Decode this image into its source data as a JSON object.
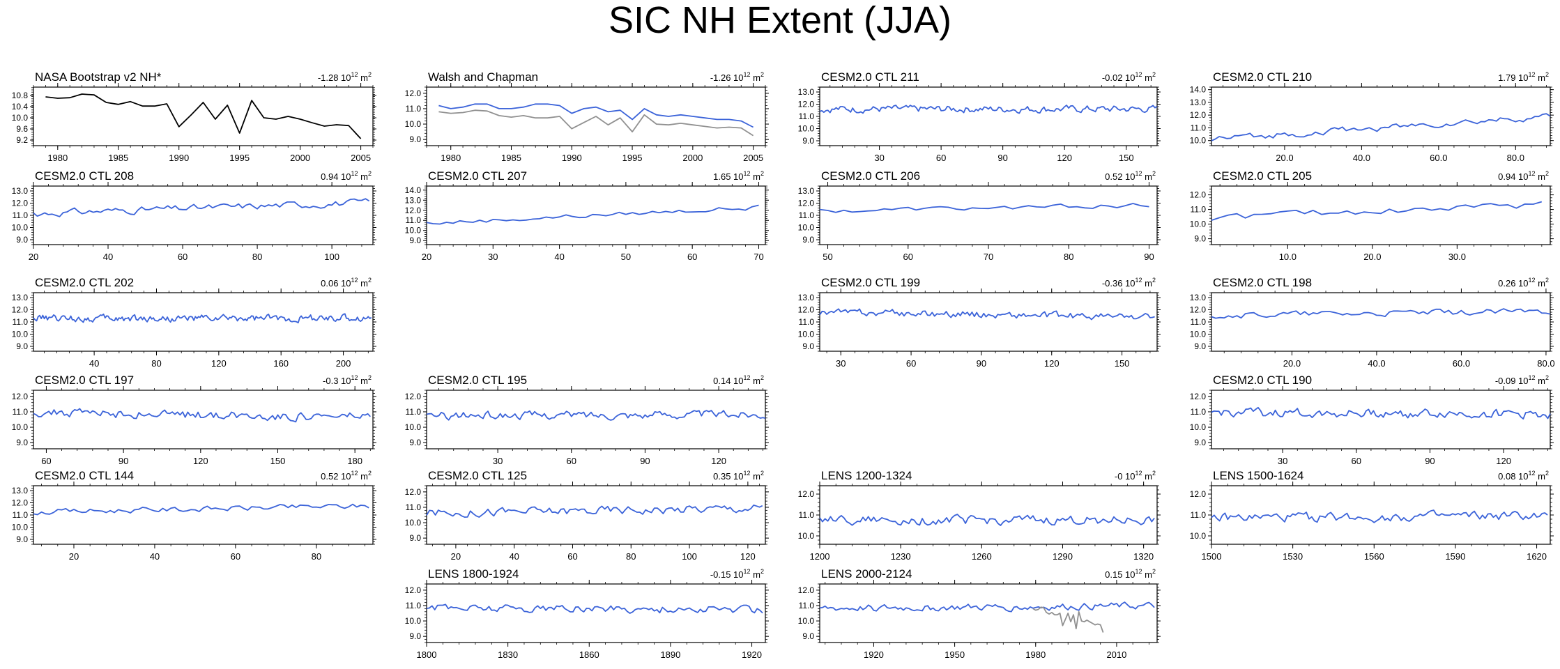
{
  "title": "SIC NH Extent (JJA)",
  "colors": {
    "model": "#3b63d9",
    "obs": "#000000",
    "obs_gray": "#909090"
  },
  "chart_data": [
    {
      "type": "line",
      "title": "NASA Bootstrap v2 NH*",
      "trend": "-1.28",
      "unit": "10",
      "exp": "12",
      "unit_tail": " m",
      "unit_exp": "2",
      "xlim": [
        1978,
        2006
      ],
      "xticks": [
        1980,
        1985,
        1990,
        1995,
        2000,
        2005
      ],
      "ylim": [
        9.0,
        11.1
      ],
      "yticks": [
        "9.2",
        "9.6",
        "10.0",
        "10.4",
        "10.8"
      ],
      "series": [
        {
          "color": "obs",
          "x": [
            1979,
            1980,
            1981,
            1982,
            1983,
            1984,
            1985,
            1986,
            1987,
            1988,
            1989,
            1990,
            1991,
            1992,
            1993,
            1994,
            1995,
            1996,
            1997,
            1998,
            1999,
            2000,
            2001,
            2002,
            2003,
            2004,
            2005
          ],
          "values": [
            10.75,
            10.7,
            10.72,
            10.85,
            10.82,
            10.55,
            10.48,
            10.58,
            10.42,
            10.42,
            10.5,
            9.68,
            10.1,
            10.55,
            9.95,
            10.45,
            9.45,
            10.62,
            10.0,
            9.95,
            10.05,
            9.95,
            9.82,
            9.7,
            9.75,
            9.72,
            9.25
          ]
        }
      ]
    },
    {
      "type": "line",
      "title": "Walsh and Chapman",
      "trend": "-1.26",
      "unit": "10",
      "exp": "12",
      "unit_tail": " m",
      "unit_exp": "2",
      "xlim": [
        1978,
        2006
      ],
      "xticks": [
        1980,
        1985,
        1990,
        1995,
        2000,
        2005
      ],
      "ylim": [
        8.6,
        12.4
      ],
      "yticks": [
        "9.0",
        "10.0",
        "11.0",
        "12.0"
      ],
      "series": [
        {
          "color": "model",
          "x": [
            1979,
            1980,
            1981,
            1982,
            1983,
            1984,
            1985,
            1986,
            1987,
            1988,
            1989,
            1990,
            1991,
            1992,
            1993,
            1994,
            1995,
            1996,
            1997,
            1998,
            1999,
            2000,
            2001,
            2002,
            2003,
            2004,
            2005
          ],
          "values": [
            11.2,
            11.0,
            11.1,
            11.3,
            11.3,
            11.0,
            11.0,
            11.1,
            11.3,
            11.3,
            11.2,
            10.7,
            11.0,
            11.1,
            10.8,
            10.9,
            10.3,
            11.0,
            10.6,
            10.5,
            10.6,
            10.5,
            10.4,
            10.3,
            10.3,
            10.2,
            9.8
          ]
        },
        {
          "color": "obs_gray",
          "x": [
            1979,
            1980,
            1981,
            1982,
            1983,
            1984,
            1985,
            1986,
            1987,
            1988,
            1989,
            1990,
            1991,
            1992,
            1993,
            1994,
            1995,
            1996,
            1997,
            1998,
            1999,
            2000,
            2001,
            2002,
            2003,
            2004,
            2005
          ],
          "values": [
            10.8,
            10.7,
            10.75,
            10.9,
            10.85,
            10.55,
            10.45,
            10.55,
            10.4,
            10.4,
            10.5,
            9.7,
            10.1,
            10.5,
            9.95,
            10.4,
            9.5,
            10.6,
            10.0,
            9.95,
            10.05,
            9.95,
            9.85,
            9.75,
            9.8,
            9.75,
            9.25
          ]
        }
      ]
    },
    {
      "type": "line",
      "title": "CESM2.0 CTL 211",
      "trend": "-0.02",
      "unit": "10",
      "exp": "12",
      "unit_tail": " m",
      "unit_exp": "2",
      "xlim": [
        1,
        165
      ],
      "xticks": [
        30,
        60,
        90,
        120,
        150
      ],
      "ylim": [
        8.6,
        13.4
      ],
      "yticks": [
        "9.0",
        "10.0",
        "11.0",
        "12.0",
        "13.0"
      ],
      "series": [
        {
          "color": "model",
          "gen": {
            "n": 165,
            "mean": 11.6,
            "amp": 0.45,
            "seed": 211
          }
        }
      ]
    },
    {
      "type": "line",
      "title": "CESM2.0 CTL 210",
      "trend": "1.79",
      "unit": "10",
      "exp": "12",
      "unit_tail": " m",
      "unit_exp": "2",
      "xlim": [
        1,
        89
      ],
      "xticks": [
        "20.0",
        "40.0",
        "60.0",
        "80.0"
      ],
      "xtickvals": [
        20,
        40,
        60,
        80
      ],
      "ylim": [
        9.6,
        14.2
      ],
      "yticks": [
        "10.0",
        "11.0",
        "12.0",
        "13.0",
        "14.0"
      ],
      "series": [
        {
          "color": "model",
          "gen": {
            "n": 89,
            "mean": 11.0,
            "amp": 0.4,
            "trend": 1.8,
            "seed": 210
          }
        }
      ]
    },
    {
      "type": "line",
      "title": "CESM2.0 CTL 208",
      "trend": "0.94",
      "unit": "10",
      "exp": "12",
      "unit_tail": " m",
      "unit_exp": "2",
      "xlim": [
        20,
        111
      ],
      "xticks": [
        20,
        40,
        60,
        80,
        100
      ],
      "ylim": [
        8.6,
        13.4
      ],
      "yticks": [
        "9.0",
        "10.0",
        "11.0",
        "12.0",
        "13.0"
      ],
      "series": [
        {
          "color": "model",
          "gen": {
            "n": 91,
            "x0": 20,
            "mean": 11.6,
            "amp": 0.45,
            "trend": 0.9,
            "seed": 208
          }
        }
      ]
    },
    {
      "type": "line",
      "title": "CESM2.0 CTL 207",
      "trend": "1.65",
      "unit": "10",
      "exp": "12",
      "unit_tail": " m",
      "unit_exp": "2",
      "xlim": [
        20,
        71
      ],
      "xticks": [
        20,
        30,
        40,
        50,
        60,
        70
      ],
      "ylim": [
        8.6,
        14.4
      ],
      "yticks": [
        "9.0",
        "10.0",
        "11.0",
        "12.0",
        "13.0",
        "14.0"
      ],
      "series": [
        {
          "color": "model",
          "gen": {
            "n": 51,
            "x0": 20,
            "mean": 11.5,
            "amp": 0.35,
            "trend": 1.6,
            "seed": 207
          }
        }
      ]
    },
    {
      "type": "line",
      "title": "CESM2.0 CTL 206",
      "trend": "0.52",
      "unit": "10",
      "exp": "12",
      "unit_tail": " m",
      "unit_exp": "2",
      "xlim": [
        49,
        91
      ],
      "xticks": [
        50,
        60,
        70,
        80,
        90
      ],
      "ylim": [
        8.6,
        13.4
      ],
      "yticks": [
        "9.0",
        "10.0",
        "11.0",
        "12.0",
        "13.0"
      ],
      "series": [
        {
          "color": "model",
          "gen": {
            "n": 42,
            "x0": 49,
            "mean": 11.6,
            "amp": 0.3,
            "trend": 0.5,
            "seed": 206
          }
        }
      ]
    },
    {
      "type": "line",
      "title": "CESM2.0 CTL 205",
      "trend": "0.94",
      "unit": "10",
      "exp": "12",
      "unit_tail": " m",
      "unit_exp": "2",
      "xlim": [
        1,
        41
      ],
      "xticks": [
        "10.0",
        "20.0",
        "30.0"
      ],
      "xtickvals": [
        10,
        20,
        30
      ],
      "ylim": [
        8.6,
        12.6
      ],
      "yticks": [
        "9.0",
        "10.0",
        "11.0",
        "12.0"
      ],
      "series": [
        {
          "color": "model",
          "gen": {
            "n": 40,
            "mean": 10.9,
            "amp": 0.4,
            "trend": 0.9,
            "seed": 205
          }
        }
      ]
    },
    {
      "type": "line",
      "title": "CESM2.0 CTL 202",
      "trend": "0.06",
      "unit": "10",
      "exp": "12",
      "unit_tail": " m",
      "unit_exp": "2",
      "xlim": [
        1,
        219
      ],
      "xticks": [
        40,
        80,
        120,
        160,
        200
      ],
      "ylim": [
        8.6,
        13.4
      ],
      "yticks": [
        "9.0",
        "10.0",
        "11.0",
        "12.0",
        "13.0"
      ],
      "series": [
        {
          "color": "model",
          "gen": {
            "n": 218,
            "mean": 11.3,
            "amp": 0.45,
            "seed": 202
          }
        }
      ]
    },
    {
      "type": "line",
      "title": "CESM2.0 CTL 199",
      "trend": "-0.36",
      "unit": "10",
      "exp": "12",
      "unit_tail": " m",
      "unit_exp": "2",
      "xlim": [
        21,
        165
      ],
      "xticks": [
        30,
        60,
        90,
        120,
        150
      ],
      "ylim": [
        8.6,
        13.4
      ],
      "yticks": [
        "9.0",
        "10.0",
        "11.0",
        "12.0",
        "13.0"
      ],
      "series": [
        {
          "color": "model",
          "gen": {
            "n": 144,
            "x0": 21,
            "mean": 11.6,
            "amp": 0.45,
            "trend": -0.4,
            "seed": 199
          }
        }
      ]
    },
    {
      "type": "line",
      "title": "CESM2.0 CTL 198",
      "trend": "0.26",
      "unit": "10",
      "exp": "12",
      "unit_tail": " m",
      "unit_exp": "2",
      "xlim": [
        1,
        81
      ],
      "xticks": [
        "20.0",
        "40.0",
        "60.0",
        "80.0"
      ],
      "xtickvals": [
        20,
        40,
        60,
        80
      ],
      "ylim": [
        8.6,
        13.4
      ],
      "yticks": [
        "9.0",
        "10.0",
        "11.0",
        "12.0",
        "13.0"
      ],
      "series": [
        {
          "color": "model",
          "gen": {
            "n": 81,
            "mean": 11.7,
            "amp": 0.4,
            "trend": 0.3,
            "seed": 198
          }
        }
      ]
    },
    {
      "type": "line",
      "title": "CESM2.0 CTL 197",
      "trend": "-0.3",
      "unit": "10",
      "exp": "12",
      "unit_tail": " m",
      "unit_exp": "2",
      "xlim": [
        55,
        187
      ],
      "xticks": [
        60,
        90,
        120,
        150,
        180
      ],
      "ylim": [
        8.6,
        12.4
      ],
      "yticks": [
        "9.0",
        "10.0",
        "11.0",
        "12.0"
      ],
      "series": [
        {
          "color": "model",
          "gen": {
            "n": 132,
            "x0": 55,
            "mean": 10.8,
            "amp": 0.45,
            "trend": -0.3,
            "seed": 197
          }
        }
      ]
    },
    {
      "type": "line",
      "title": "CESM2.0 CTL 195",
      "trend": "0.14",
      "unit": "10",
      "exp": "12",
      "unit_tail": " m",
      "unit_exp": "2",
      "xlim": [
        1,
        139
      ],
      "xticks": [
        30,
        60,
        90,
        120
      ],
      "ylim": [
        8.6,
        12.4
      ],
      "yticks": [
        "9.0",
        "10.0",
        "11.0",
        "12.0"
      ],
      "series": [
        {
          "color": "model",
          "gen": {
            "n": 139,
            "mean": 10.8,
            "amp": 0.4,
            "trend": 0.1,
            "seed": 195
          }
        }
      ]
    },
    {
      "type": "line",
      "title": "CESM2.0 CTL 190",
      "trend": "-0.09",
      "unit": "10",
      "exp": "12",
      "unit_tail": " m",
      "unit_exp": "2",
      "xlim": [
        1,
        139
      ],
      "xticks": [
        30,
        60,
        90,
        120
      ],
      "ylim": [
        8.6,
        12.4
      ],
      "yticks": [
        "9.0",
        "10.0",
        "11.0",
        "12.0"
      ],
      "series": [
        {
          "color": "model",
          "gen": {
            "n": 139,
            "mean": 10.9,
            "amp": 0.45,
            "trend": -0.1,
            "seed": 190
          }
        }
      ]
    },
    {
      "type": "line",
      "title": "CESM2.0 CTL 144",
      "trend": "0.52",
      "unit": "10",
      "exp": "12",
      "unit_tail": " m",
      "unit_exp": "2",
      "xlim": [
        10,
        94
      ],
      "xticks": [
        20,
        40,
        60,
        80
      ],
      "ylim": [
        8.6,
        13.4
      ],
      "yticks": [
        "9.0",
        "10.0",
        "11.0",
        "12.0",
        "13.0"
      ],
      "series": [
        {
          "color": "model",
          "gen": {
            "n": 84,
            "x0": 10,
            "mean": 11.5,
            "amp": 0.35,
            "trend": 0.5,
            "seed": 144
          }
        }
      ]
    },
    {
      "type": "line",
      "title": "CESM2.0 CTL 125",
      "trend": "0.35",
      "unit": "10",
      "exp": "12",
      "unit_tail": " m",
      "unit_exp": "2",
      "xlim": [
        10,
        126
      ],
      "xticks": [
        20,
        40,
        60,
        80,
        100,
        120
      ],
      "ylim": [
        8.6,
        12.4
      ],
      "yticks": [
        "9.0",
        "10.0",
        "11.0",
        "12.0"
      ],
      "series": [
        {
          "color": "model",
          "gen": {
            "n": 116,
            "x0": 10,
            "mean": 10.8,
            "amp": 0.45,
            "trend": 0.35,
            "seed": 125
          }
        }
      ]
    },
    {
      "type": "line",
      "title": "LENS 1200-1324",
      "trend": "-0",
      "unit": "10",
      "exp": "12",
      "unit_tail": " m",
      "unit_exp": "2",
      "xlim": [
        1200,
        1325
      ],
      "xticks": [
        1200,
        1230,
        1260,
        1290,
        1320
      ],
      "ylim": [
        9.6,
        12.4
      ],
      "yticks": [
        "10.0",
        "11.0",
        "12.0"
      ],
      "series": [
        {
          "color": "model",
          "gen": {
            "n": 125,
            "x0": 1200,
            "mean": 10.75,
            "amp": 0.35,
            "seed": 1200
          }
        }
      ]
    },
    {
      "type": "line",
      "title": "LENS 1500-1624",
      "trend": "0.08",
      "unit": "10",
      "exp": "12",
      "unit_tail": " m",
      "unit_exp": "2",
      "xlim": [
        1500,
        1625
      ],
      "xticks": [
        1500,
        1530,
        1560,
        1590,
        1620
      ],
      "ylim": [
        9.6,
        12.4
      ],
      "yticks": [
        "10.0",
        "11.0",
        "12.0"
      ],
      "series": [
        {
          "color": "model",
          "gen": {
            "n": 125,
            "x0": 1500,
            "mean": 10.9,
            "amp": 0.35,
            "trend": 0.1,
            "seed": 1500
          }
        }
      ]
    },
    {
      "type": "line",
      "title": "LENS 1800-1924",
      "trend": "-0.15",
      "unit": "10",
      "exp": "12",
      "unit_tail": " m",
      "unit_exp": "2",
      "xlim": [
        1800,
        1925
      ],
      "xticks": [
        1800,
        1830,
        1860,
        1890,
        1920
      ],
      "ylim": [
        8.6,
        12.4
      ],
      "yticks": [
        "9.0",
        "10.0",
        "11.0",
        "12.0"
      ],
      "series": [
        {
          "color": "model",
          "gen": {
            "n": 125,
            "x0": 1800,
            "mean": 10.8,
            "amp": 0.4,
            "trend": -0.15,
            "seed": 1800
          }
        }
      ]
    },
    {
      "type": "line",
      "title": "LENS 2000-2124",
      "trend": "0.15",
      "unit": "10",
      "exp": "12",
      "unit_tail": " m",
      "unit_exp": "2",
      "xlim": [
        1900,
        2025
      ],
      "xticks": [
        1920,
        1950,
        1980,
        2010
      ],
      "ylim": [
        8.6,
        12.4
      ],
      "yticks": [
        "9.0",
        "10.0",
        "11.0",
        "12.0"
      ],
      "series": [
        {
          "color": "model",
          "gen": {
            "n": 125,
            "x0": 1900,
            "mean": 10.9,
            "amp": 0.35,
            "trend": 0.15,
            "seed": 2000
          }
        },
        {
          "color": "obs_gray",
          "x": [
            1979,
            1980,
            1981,
            1982,
            1983,
            1984,
            1985,
            1986,
            1987,
            1988,
            1989,
            1990,
            1991,
            1992,
            1993,
            1994,
            1995,
            1996,
            1997,
            1998,
            1999,
            2000,
            2001,
            2002,
            2003,
            2004,
            2005
          ],
          "values": [
            10.8,
            10.7,
            10.75,
            10.9,
            10.85,
            10.55,
            10.45,
            10.55,
            10.4,
            10.4,
            10.5,
            9.7,
            10.1,
            10.5,
            9.95,
            10.4,
            9.5,
            10.6,
            10.0,
            9.95,
            10.05,
            9.95,
            9.85,
            9.75,
            9.8,
            9.75,
            9.25
          ]
        }
      ]
    }
  ]
}
